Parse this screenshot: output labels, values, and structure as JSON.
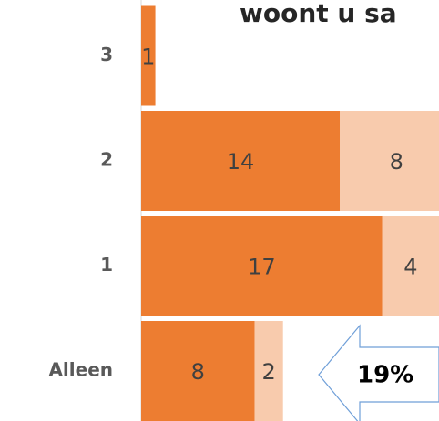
{
  "chart_data": {
    "type": "stacked-bar-horizontal",
    "title": "woont u sa",
    "categories": [
      "Alleen",
      "1",
      "2",
      "3"
    ],
    "series": [
      {
        "color": "#ed7d31",
        "values": [
          8,
          17,
          14,
          1
        ]
      },
      {
        "color": "#f8cbad",
        "values": [
          2,
          4,
          8,
          null
        ]
      }
    ],
    "xlim": [
      0,
      21
    ],
    "annotation": "19%"
  }
}
